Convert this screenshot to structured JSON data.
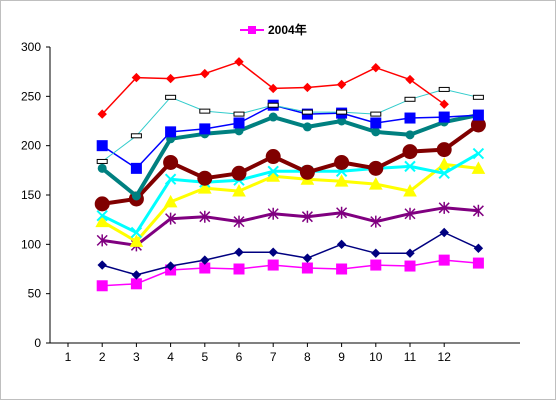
{
  "chart_data": {
    "type": "line",
    "title": "",
    "xlabel": "",
    "ylabel": "",
    "x": [
      1,
      2,
      3,
      4,
      5,
      6,
      7,
      8,
      9,
      10,
      11,
      12
    ],
    "x_tick_labels": [
      "1",
      "2",
      "3",
      "4",
      "5",
      "6",
      "7",
      "8",
      "9",
      "10",
      "11",
      "12"
    ],
    "ylim": [
      0,
      300
    ],
    "y_ticks": [
      0,
      50,
      100,
      150,
      200,
      250,
      300
    ],
    "grid": false,
    "legend": {
      "position": "top",
      "entries": [
        "2004年"
      ]
    },
    "series": [
      {
        "name": "2004年",
        "color": "#ff00ff",
        "marker": "square-filled",
        "width": 1.5,
        "values": [
          58,
          60,
          74,
          76,
          75,
          79,
          76,
          75,
          79,
          78,
          84,
          81
        ]
      },
      {
        "name": "",
        "color": "#000080",
        "marker": "diamond",
        "width": 1.5,
        "values": [
          79,
          69,
          78,
          84,
          92,
          92,
          86,
          100,
          91,
          91,
          112,
          96
        ]
      },
      {
        "name": "",
        "color": "#800080",
        "marker": "star",
        "width": 3,
        "values": [
          104,
          99,
          126,
          128,
          123,
          131,
          128,
          132,
          123,
          131,
          137,
          134
        ]
      },
      {
        "name": "",
        "color": "#ffff00",
        "marker": "triangle",
        "width": 3,
        "values": [
          123,
          103,
          143,
          157,
          154,
          169,
          166,
          164,
          161,
          154,
          181,
          177
        ]
      },
      {
        "name": "",
        "color": "#00ffff",
        "marker": "x",
        "width": 3,
        "values": [
          129,
          112,
          166,
          163,
          165,
          174,
          174,
          174,
          177,
          179,
          172,
          192
        ]
      },
      {
        "name": "",
        "color": "#800000",
        "marker": "circle",
        "width": 4,
        "values": [
          141,
          146,
          183,
          167,
          172,
          189,
          173,
          183,
          177,
          194,
          196,
          221
        ]
      },
      {
        "name": "",
        "color": "#008080",
        "marker": "circle-small",
        "width": 4,
        "values": [
          177,
          149,
          207,
          212,
          215,
          229,
          219,
          225,
          214,
          211,
          224,
          231
        ]
      },
      {
        "name": "",
        "color": "#0000ff",
        "marker": "square-filled",
        "width": 1.5,
        "values": [
          200,
          177,
          214,
          217,
          223,
          241,
          232,
          233,
          223,
          228,
          229,
          231
        ]
      },
      {
        "name": "",
        "color": "#33cccc",
        "marker": "dash",
        "width": 1,
        "values": [
          184,
          210,
          249,
          235,
          232,
          241,
          234,
          234,
          232,
          247,
          257,
          249
        ]
      },
      {
        "name": "",
        "color": "#ff0000",
        "marker": "diamond",
        "width": 1.5,
        "values": [
          232,
          269,
          268,
          273,
          285,
          258,
          259,
          262,
          279,
          267,
          242,
          null
        ]
      }
    ]
  }
}
